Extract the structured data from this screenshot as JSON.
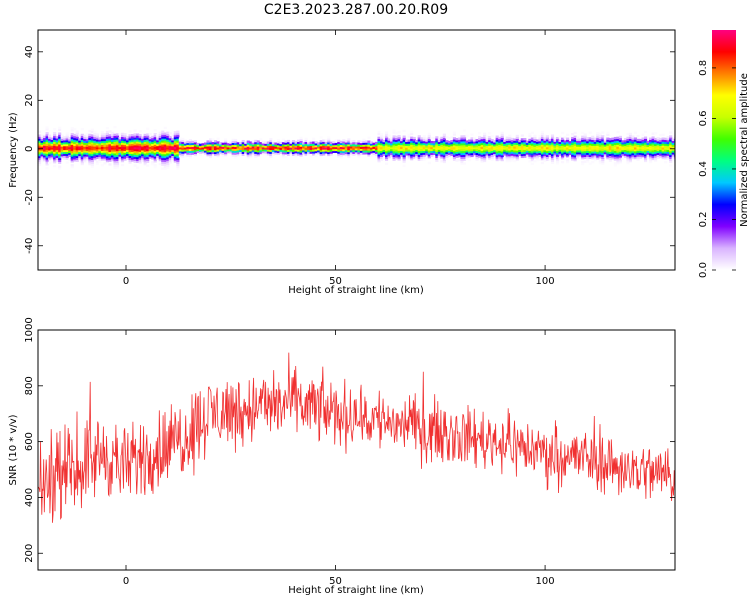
{
  "figure": {
    "title": "C2E3.2023.287.00.20.R09"
  },
  "chart_data": [
    {
      "type": "heatmap",
      "xlabel": "Height of straight line (km)",
      "ylabel": "Frequency (Hz)",
      "xlim": [
        -21,
        131
      ],
      "ylim": [
        -50,
        49
      ],
      "xticks": [
        0,
        50,
        100
      ],
      "yticks": [
        -40,
        -20,
        0,
        20,
        40
      ],
      "grid": false,
      "description_values": {
        "ridge_frequency_hz": 0,
        "ridge_segments": [
          {
            "x_start": -21,
            "x_end": 12,
            "band_halfwidth_hz": 3,
            "peak_amplitude": 0.95
          },
          {
            "x_start": 12,
            "x_end": 60,
            "band_halfwidth_hz": 1.5,
            "peak_amplitude": 0.95
          },
          {
            "x_start": 60,
            "x_end": 131,
            "band_halfwidth_hz": 2.5,
            "peak_amplitude": 0.75
          }
        ]
      },
      "colorbar": {
        "label": "Normalized spectral amplitude",
        "range": [
          0.0,
          0.95
        ],
        "ticks": [
          "0.0",
          "0.2",
          "0.4",
          "0.6",
          "0.8"
        ],
        "tick_values": [
          0.0,
          0.2,
          0.4,
          0.6,
          0.8
        ],
        "colormap": [
          "#ffffff",
          "#d9b3ff",
          "#8000ff",
          "#0000ff",
          "#00c8ff",
          "#00ff80",
          "#40ff00",
          "#c8ff00",
          "#ffff00",
          "#ff8000",
          "#ff0000",
          "#ff0080"
        ]
      }
    },
    {
      "type": "line",
      "xlabel": "Height of straight line (km)",
      "ylabel": "SNR (10 * v/v)",
      "xlim": [
        -21,
        131
      ],
      "ylim": [
        140,
        1000
      ],
      "xticks": [
        0,
        50,
        100
      ],
      "yticks": [
        200,
        400,
        600,
        800,
        1000
      ],
      "grid": false,
      "series": [
        {
          "color": "#f03030",
          "envelope_x": [
            -21,
            -15,
            -10,
            -5,
            0,
            5,
            10,
            15,
            20,
            30,
            40,
            50,
            60,
            70,
            80,
            90,
            100,
            110,
            120,
            131
          ],
          "envelope_center": [
            440,
            480,
            520,
            560,
            500,
            560,
            580,
            640,
            700,
            720,
            740,
            700,
            680,
            650,
            620,
            600,
            560,
            540,
            500,
            480
          ],
          "envelope_spread": [
            120,
            130,
            140,
            140,
            130,
            140,
            140,
            140,
            130,
            120,
            120,
            110,
            110,
            100,
            100,
            100,
            100,
            100,
            100,
            100
          ],
          "sample_step_km": 0.15
        }
      ]
    }
  ]
}
